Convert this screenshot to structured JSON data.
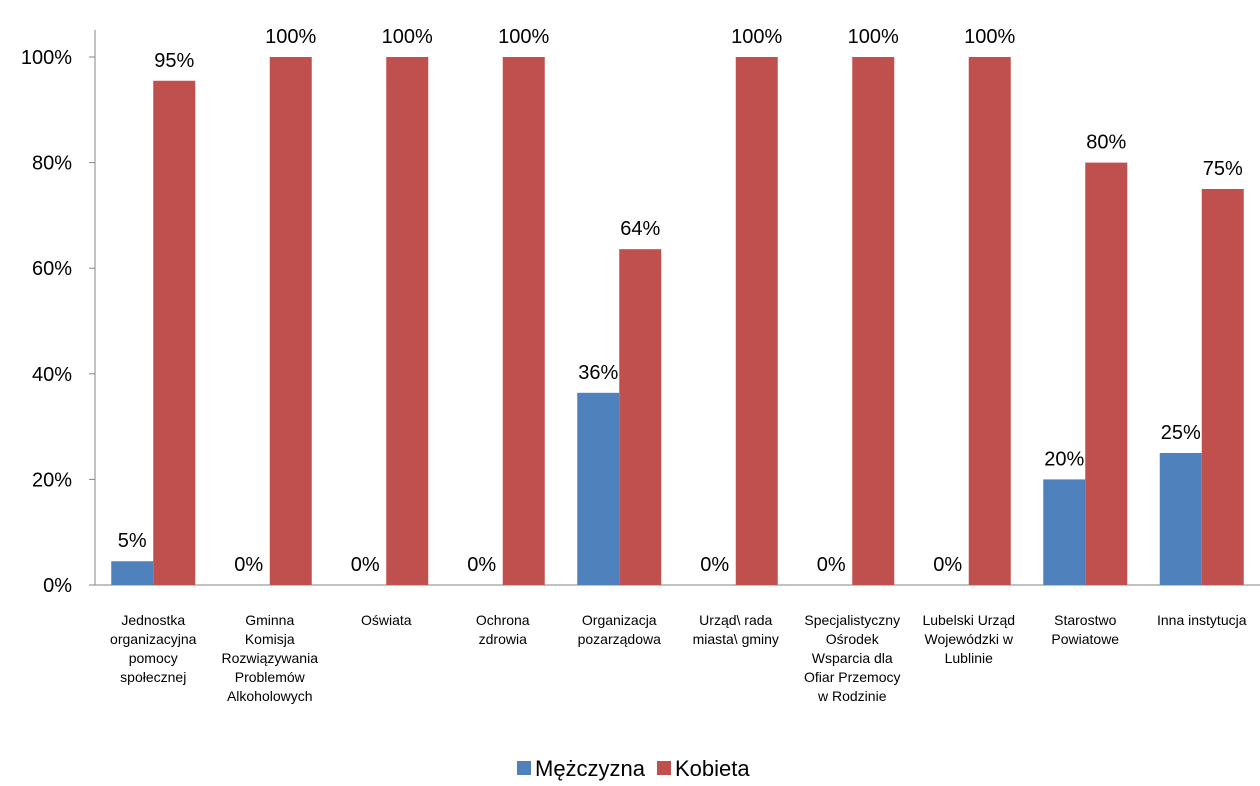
{
  "chart_data": {
    "type": "bar",
    "title": "",
    "xlabel": "",
    "ylabel": "",
    "ylim": [
      0,
      100
    ],
    "yticks": [
      "0%",
      "20%",
      "40%",
      "60%",
      "80%",
      "100%"
    ],
    "ytick_values": [
      0,
      20,
      40,
      60,
      80,
      100
    ],
    "grid": false,
    "legend_position": "bottom",
    "categories": [
      [
        "Jednostka",
        "organizacyjna",
        "pomocy",
        "społecznej"
      ],
      [
        "Gminna",
        "Komisja",
        "Rozwiązywania",
        "Problemów",
        "Alkoholowych"
      ],
      [
        "Oświata"
      ],
      [
        "Ochrona",
        "zdrowia"
      ],
      [
        "Organizacja",
        "pozarządowa"
      ],
      [
        "Urząd\\ rada",
        "miasta\\ gminy"
      ],
      [
        "Specjalistyczny",
        "Ośrodek",
        "Wsparcia dla",
        "Ofiar Przemocy",
        "w Rodzinie"
      ],
      [
        "Lubelski Urząd",
        "Wojewódzki w",
        "Lublinie"
      ],
      [
        "Starostwo",
        "Powiatowe"
      ],
      [
        "Inna instytucja"
      ]
    ],
    "series": [
      {
        "name": "Mężczyzna",
        "color": "#4F81BD",
        "values": [
          4.5,
          0,
          0,
          0,
          36.4,
          0,
          0,
          0,
          20,
          25
        ],
        "labels": [
          "5%",
          "0%",
          "0%",
          "0%",
          "36%",
          "0%",
          "0%",
          "0%",
          "20%",
          "25%"
        ]
      },
      {
        "name": "Kobieta",
        "color": "#C0504D",
        "values": [
          95.5,
          100,
          100,
          100,
          63.6,
          100,
          100,
          100,
          80,
          75
        ],
        "labels": [
          "95%",
          "100%",
          "100%",
          "100%",
          "64%",
          "100%",
          "100%",
          "100%",
          "80%",
          "75%"
        ]
      }
    ]
  }
}
